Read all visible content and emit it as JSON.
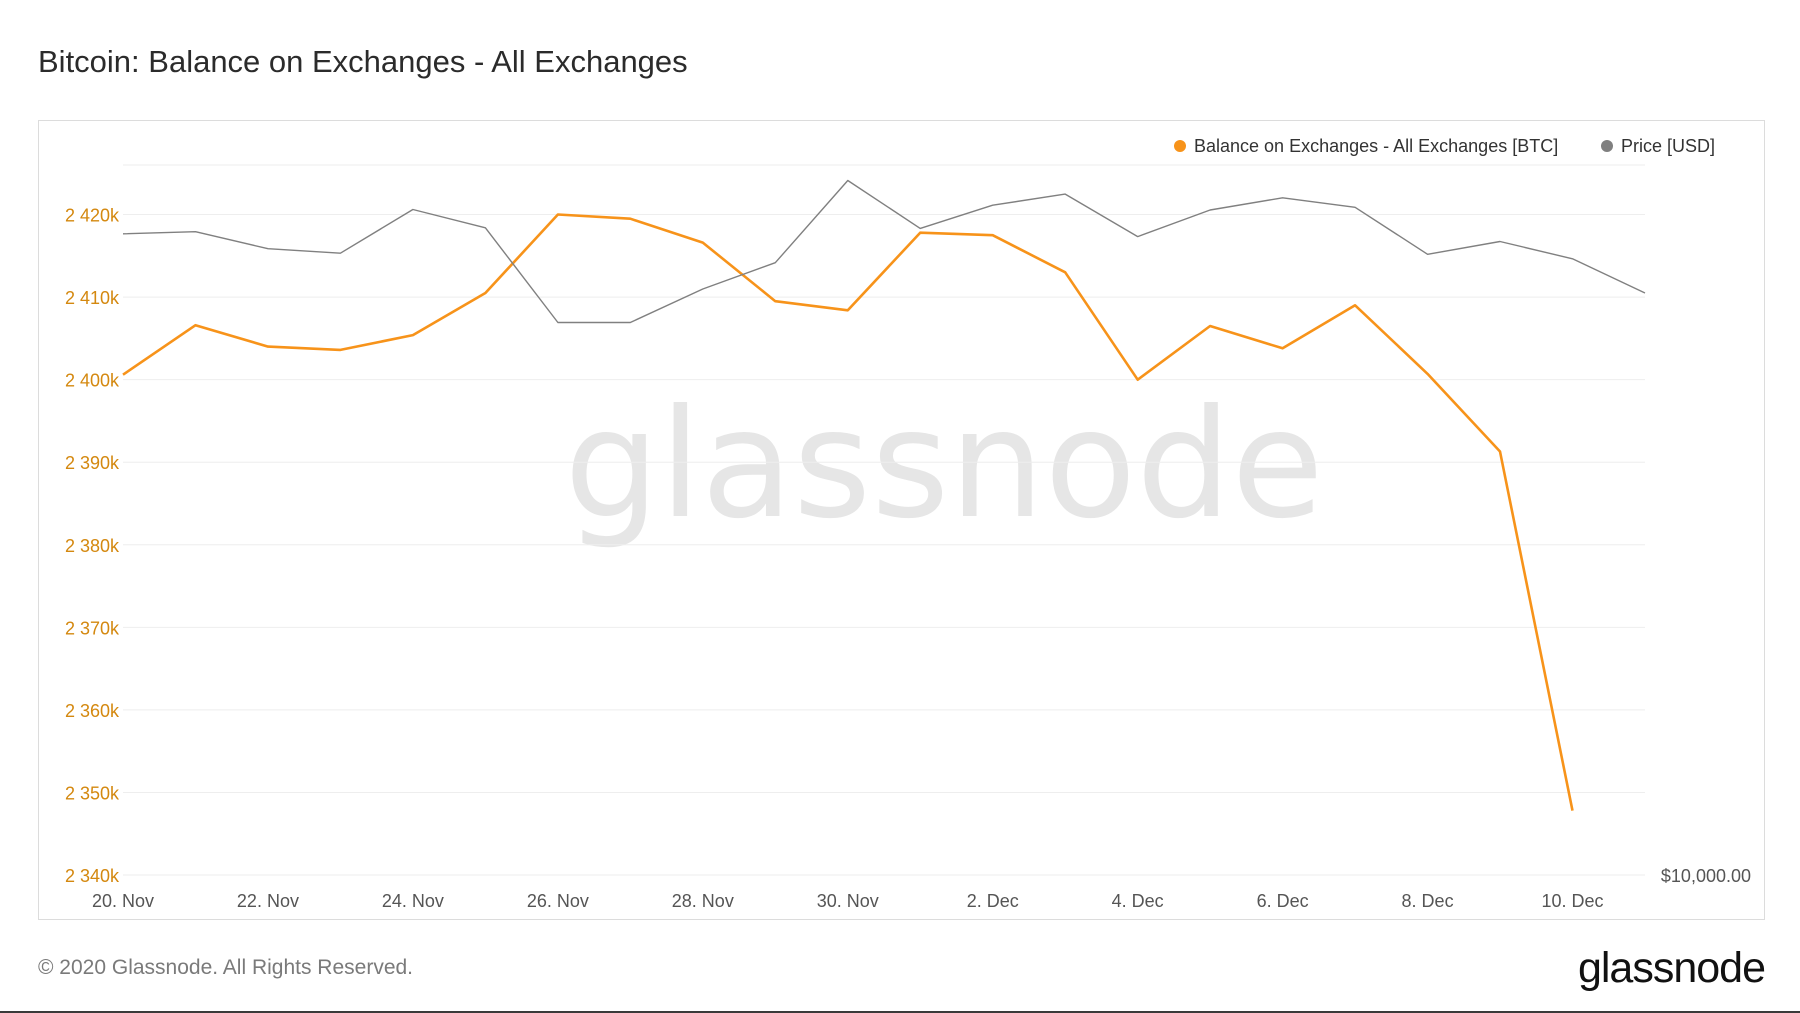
{
  "title": "Bitcoin: Balance on Exchanges - All Exchanges",
  "watermark": "glassnode",
  "footer": {
    "copyright": "© 2020 Glassnode. All Rights Reserved.",
    "logo": "glassnode"
  },
  "colors": {
    "balance": "#f7931a",
    "price": "#808080",
    "grid": "#eeeeee",
    "axis_text_left": "#d4880f",
    "axis_text": "#555555",
    "watermark": "#e6e6e6"
  },
  "chart_data": {
    "type": "line",
    "title": "Bitcoin: Balance on Exchanges - All Exchanges",
    "x": [
      "2020-11-20",
      "2020-11-21",
      "2020-11-22",
      "2020-11-23",
      "2020-11-24",
      "2020-11-25",
      "2020-11-26",
      "2020-11-27",
      "2020-11-28",
      "2020-11-29",
      "2020-11-30",
      "2020-12-01",
      "2020-12-02",
      "2020-12-03",
      "2020-12-04",
      "2020-12-05",
      "2020-12-06",
      "2020-12-07",
      "2020-12-08",
      "2020-12-09",
      "2020-12-10",
      "2020-12-11"
    ],
    "x_tick_labels": [
      "20. Nov",
      "22. Nov",
      "24. Nov",
      "26. Nov",
      "28. Nov",
      "30. Nov",
      "2. Dec",
      "4. Dec",
      "6. Dec",
      "8. Dec",
      "10. Dec"
    ],
    "y_left": {
      "ylim": [
        2340000,
        2426000
      ],
      "ticks": [
        2340000,
        2350000,
        2360000,
        2370000,
        2380000,
        2390000,
        2400000,
        2410000,
        2420000
      ],
      "tick_labels": [
        "2 340k",
        "2 350k",
        "2 360k",
        "2 370k",
        "2 380k",
        "2 390k",
        "2 400k",
        "2 410k",
        "2 420k"
      ]
    },
    "y_right": {
      "scale": "log",
      "tick_labels": [
        "$10,000.00"
      ]
    },
    "grid": true,
    "legend_position": "top-right",
    "series": [
      {
        "name": "Balance on Exchanges - All Exchanges [BTC]",
        "axis": "left",
        "values": [
          2400600,
          2406600,
          2404000,
          2403600,
          2405400,
          2410500,
          2420000,
          2419500,
          2416600,
          2409500,
          2408400,
          2417800,
          2417500,
          2413000,
          2400000,
          2406500,
          2403800,
          2409000,
          2400700,
          2391300,
          2347800,
          null
        ]
      },
      {
        "name": "Price [USD]",
        "axis": "right",
        "values": [
          18700,
          18740,
          18430,
          18350,
          19150,
          18810,
          17150,
          17150,
          17720,
          18180,
          19700,
          18800,
          19230,
          19440,
          18650,
          19140,
          19370,
          19190,
          18330,
          18560,
          18250,
          17650
        ]
      }
    ]
  }
}
